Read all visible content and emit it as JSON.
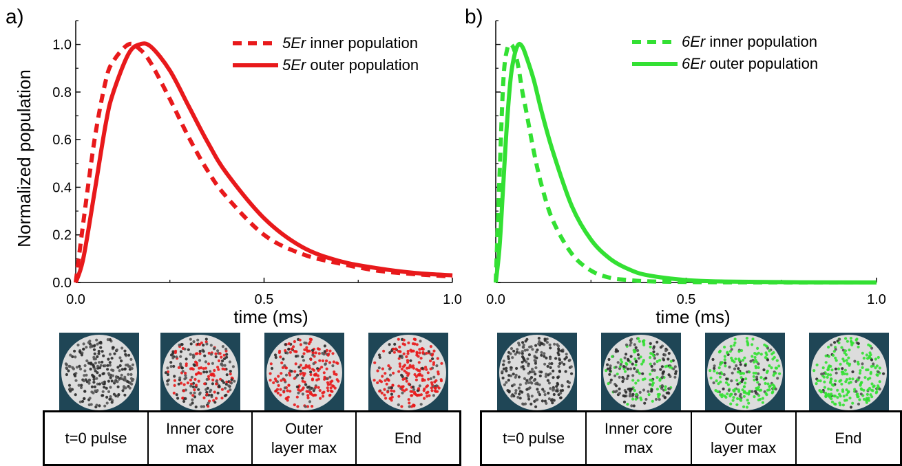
{
  "panels": [
    {
      "letter": "a)",
      "color": "#e8191b",
      "legend": [
        {
          "prefix": "5Er",
          "text": " inner population",
          "style": "dashed"
        },
        {
          "prefix": "5Er",
          "text": " outer population",
          "style": "solid"
        }
      ],
      "snapshot_labels": [
        "t=0 pulse",
        "Inner core\nmax",
        "Outer\nlayer max",
        "End"
      ],
      "snapshot_tint": [
        0,
        0.55,
        0.85,
        0.75
      ]
    },
    {
      "letter": "b)",
      "color": "#33e033",
      "legend": [
        {
          "prefix": "6Er",
          "text": " inner population",
          "style": "dashed"
        },
        {
          "prefix": "6Er",
          "text": " outer population",
          "style": "solid"
        }
      ],
      "snapshot_labels": [
        "t=0 pulse",
        "Inner core\nmax",
        "Outer\nlayer max",
        "End"
      ],
      "snapshot_tint": [
        0,
        0.55,
        0.95,
        0.8
      ]
    }
  ],
  "chart_data": [
    {
      "type": "line",
      "title": "",
      "xlabel": "time (ms)",
      "ylabel": "Normalized population",
      "xlim": [
        0,
        1.0
      ],
      "ylim": [
        0,
        1.1
      ],
      "xticks": [
        "0.0",
        "0.5",
        "1.0"
      ],
      "yticks": [
        "0.0",
        "0.2",
        "0.4",
        "0.6",
        "0.8",
        "1.0"
      ],
      "x": [
        0,
        0.02,
        0.05,
        0.08,
        0.1,
        0.14,
        0.17,
        0.2,
        0.25,
        0.3,
        0.35,
        0.4,
        0.5,
        0.6,
        0.7,
        0.8,
        0.9,
        1.0
      ],
      "series": [
        {
          "name": "5Er inner population",
          "style": "dashed",
          "values": [
            0,
            0.25,
            0.6,
            0.85,
            0.93,
            1.0,
            0.98,
            0.92,
            0.77,
            0.61,
            0.47,
            0.36,
            0.2,
            0.12,
            0.08,
            0.05,
            0.035,
            0.025
          ]
        },
        {
          "name": "5Er outer population",
          "style": "solid",
          "values": [
            0,
            0.1,
            0.38,
            0.67,
            0.8,
            0.96,
            1.0,
            0.99,
            0.89,
            0.74,
            0.59,
            0.46,
            0.27,
            0.15,
            0.09,
            0.06,
            0.04,
            0.03
          ]
        }
      ]
    },
    {
      "type": "line",
      "title": "",
      "xlabel": "time (ms)",
      "ylabel": "",
      "xlim": [
        0,
        1.0
      ],
      "ylim": [
        0,
        1.1
      ],
      "xticks": [
        "0.0",
        "0.5",
        "1.0"
      ],
      "yticks": [],
      "x": [
        0,
        0.01,
        0.02,
        0.03,
        0.04,
        0.05,
        0.06,
        0.07,
        0.08,
        0.1,
        0.12,
        0.15,
        0.2,
        0.25,
        0.3,
        0.35,
        0.4,
        0.5,
        0.6,
        0.8,
        1.0
      ],
      "series": [
        {
          "name": "6Er inner population",
          "style": "dashed",
          "values": [
            0,
            0.45,
            0.85,
            0.98,
            1.0,
            0.97,
            0.9,
            0.8,
            0.72,
            0.55,
            0.41,
            0.26,
            0.12,
            0.05,
            0.02,
            0.01,
            0.005,
            0.002,
            0.001,
            0,
            0
          ]
        },
        {
          "name": "6Er outer population",
          "style": "solid",
          "values": [
            0,
            0.15,
            0.42,
            0.68,
            0.87,
            0.96,
            1.0,
            0.99,
            0.95,
            0.85,
            0.72,
            0.55,
            0.32,
            0.18,
            0.1,
            0.055,
            0.03,
            0.01,
            0.004,
            0.001,
            0
          ]
        }
      ]
    }
  ]
}
